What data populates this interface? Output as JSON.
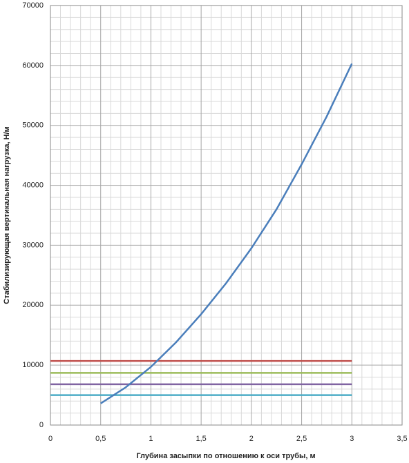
{
  "chart_data": {
    "type": "line",
    "xlabel": "Глубина засыпки по отношению к оси трубы, м",
    "ylabel": "Стабилизирующая вертикальная нагрузка, Н/м",
    "xlim": [
      0,
      3.5
    ],
    "xticks": [
      0,
      {
        "value": 0.5,
        "label": "0,5"
      },
      1,
      {
        "value": 1.5,
        "label": "1,5"
      },
      2,
      {
        "value": 2.5,
        "label": "2,5"
      },
      3,
      {
        "value": 3.5,
        "label": "3,5"
      }
    ],
    "ylim": [
      0,
      70000
    ],
    "yticks": [
      0,
      10000,
      20000,
      30000,
      40000,
      50000,
      60000,
      70000
    ],
    "grid": true,
    "series": [
      {
        "color": "#4a7ebb",
        "x": [
          0.5,
          0.75,
          1,
          1.25,
          1.5,
          1.75,
          2,
          2.25,
          2.5,
          2.75,
          3
        ],
        "values": [
          3600,
          6300,
          9700,
          13800,
          18500,
          23700,
          29500,
          36000,
          43500,
          51500,
          60300
        ]
      },
      {
        "color": "#c0504d",
        "x": [
          0,
          3
        ],
        "values": [
          10700,
          10700
        ]
      },
      {
        "color": "#9bbb59",
        "x": [
          0,
          3
        ],
        "values": [
          8700,
          8700
        ]
      },
      {
        "color": "#8064a2",
        "x": [
          0,
          3
        ],
        "values": [
          6800,
          6800
        ]
      },
      {
        "color": "#4bacc6",
        "x": [
          0,
          3
        ],
        "values": [
          5000,
          5000
        ]
      }
    ]
  }
}
